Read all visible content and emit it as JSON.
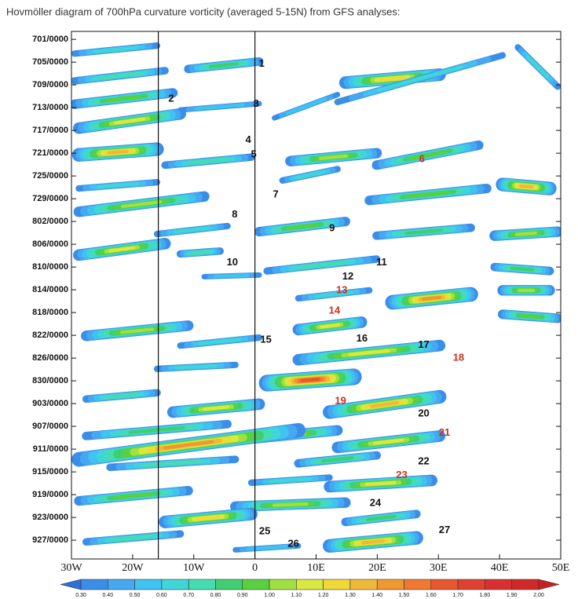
{
  "chart_data": {
    "type": "hovmoller",
    "title": "Hovmöller diagram of 700hPa curvature vorticity (averaged 5-15N) from GFS analyses:",
    "xlim": [
      -30,
      50
    ],
    "xticks": [
      {
        "value": -30,
        "label": "30W"
      },
      {
        "value": -20,
        "label": "20W"
      },
      {
        "value": -10,
        "label": "10W"
      },
      0,
      {
        "value": 10,
        "label": "10E"
      },
      {
        "value": 20,
        "label": "20E"
      },
      {
        "value": 30,
        "label": "30E"
      },
      {
        "value": 40,
        "label": "40E"
      },
      {
        "value": 50,
        "label": "50E"
      }
    ],
    "ylim": [
      -1.4,
      91.3
    ],
    "y_reversed": true,
    "yticks": [
      {
        "value": 0,
        "label": "701/0000"
      },
      {
        "value": 4,
        "label": "705/0000"
      },
      {
        "value": 8,
        "label": "709/0000"
      },
      {
        "value": 12,
        "label": "713/0000"
      },
      {
        "value": 16,
        "label": "717/0000"
      },
      {
        "value": 20,
        "label": "721/0000"
      },
      {
        "value": 24,
        "label": "725/0000"
      },
      {
        "value": 28,
        "label": "729/0000"
      },
      {
        "value": 32,
        "label": "802/0000"
      },
      {
        "value": 36,
        "label": "806/0000"
      },
      {
        "value": 40,
        "label": "810/0000"
      },
      {
        "value": 44,
        "label": "814/0000"
      },
      {
        "value": 48,
        "label": "818/0000"
      },
      {
        "value": 52,
        "label": "822/0000"
      },
      {
        "value": 56,
        "label": "826/0000"
      },
      {
        "value": 60,
        "label": "830/0000"
      },
      {
        "value": 64,
        "label": "903/0000"
      },
      {
        "value": 68,
        "label": "907/0000"
      },
      {
        "value": 72,
        "label": "911/0000"
      },
      {
        "value": 76,
        "label": "915/0000"
      },
      {
        "value": 80,
        "label": "919/0000"
      },
      {
        "value": 84,
        "label": "923/0000"
      },
      {
        "value": 88,
        "label": "927/0000"
      }
    ],
    "reference_lines": [
      -15.8,
      0
    ],
    "features": [
      {
        "lon": [
          -29.5,
          -16.0
        ],
        "day": [
          2.5,
          1.1
        ],
        "level": 0.6
      },
      {
        "lon": [
          -10.9,
          0.7
        ],
        "day": [
          5.2,
          3.9
        ],
        "level": 0.8
      },
      {
        "lon": [
          -29.5,
          -14.7
        ],
        "day": [
          7.3,
          5.5
        ],
        "level": 0.7
      },
      {
        "lon": [
          14.8,
          30.2
        ],
        "day": [
          7.6,
          6.2
        ],
        "level": 1.2
      },
      {
        "lon": [
          -29.5,
          -13.4
        ],
        "day": [
          11.4,
          9.4
        ],
        "level": 0.9
      },
      {
        "lon": [
          -12.2,
          0.7
        ],
        "day": [
          12.4,
          11.3
        ],
        "level": 0.5
      },
      {
        "lon": [
          -28.8,
          -12.2
        ],
        "day": [
          15.6,
          13.1
        ],
        "level": 1.1
      },
      {
        "lon": [
          3.2,
          13.5
        ],
        "day": [
          13.8,
          9.7
        ],
        "level": 0.5
      },
      {
        "lon": [
          13.5,
          40.5
        ],
        "day": [
          11.0,
          2.8
        ],
        "level": 0.6
      },
      {
        "lon": [
          -28.8,
          -16.0
        ],
        "day": [
          20.3,
          19.3
        ],
        "level": 1.3
      },
      {
        "lon": [
          -14.7,
          -0.6
        ],
        "day": [
          22.1,
          20.7
        ],
        "level": 0.7
      },
      {
        "lon": [
          5.8,
          19.9
        ],
        "day": [
          21.4,
          20.0
        ],
        "level": 1.0
      },
      {
        "lon": [
          19.9,
          36.6
        ],
        "day": [
          22.1,
          18.6
        ],
        "level": 0.9
      },
      {
        "lon": [
          -28.8,
          -16.0
        ],
        "day": [
          26.2,
          25.1
        ],
        "level": 0.6
      },
      {
        "lon": [
          -28.8,
          -8.3
        ],
        "day": [
          30.3,
          27.6
        ],
        "level": 1.0
      },
      {
        "lon": [
          4.5,
          13.5
        ],
        "day": [
          24.8,
          22.8
        ],
        "level": 0.6
      },
      {
        "lon": [
          18.7,
          37.9
        ],
        "day": [
          28.3,
          26.2
        ],
        "level": 0.9
      },
      {
        "lon": [
          0.7,
          14.8
        ],
        "day": [
          33.8,
          32.0
        ],
        "level": 0.9
      },
      {
        "lon": [
          -28.8,
          -14.7
        ],
        "day": [
          37.9,
          35.9
        ],
        "level": 1.1
      },
      {
        "lon": [
          -16.0,
          -4.5
        ],
        "day": [
          34.2,
          32.8
        ],
        "level": 0.6
      },
      {
        "lon": [
          19.9,
          35.3
        ],
        "day": [
          34.5,
          33.1
        ],
        "level": 0.8
      },
      {
        "lon": [
          -12.2,
          -5.7
        ],
        "day": [
          37.7,
          37.2
        ],
        "level": 0.7
      },
      {
        "lon": [
          2.0,
          19.9
        ],
        "day": [
          40.7,
          38.6
        ],
        "level": 0.7
      },
      {
        "lon": [
          -8.3,
          0.7
        ],
        "day": [
          41.7,
          41.4
        ],
        "level": 0.5
      },
      {
        "lon": [
          7.1,
          18.7
        ],
        "day": [
          45.5,
          44.1
        ],
        "level": 0.6
      },
      {
        "lon": [
          22.5,
          35.3
        ],
        "day": [
          46.2,
          44.8
        ],
        "level": 1.4
      },
      {
        "lon": [
          -27.6,
          -10.9
        ],
        "day": [
          52.1,
          50.3
        ],
        "level": 1.0
      },
      {
        "lon": [
          7.1,
          17.4
        ],
        "day": [
          51.0,
          49.7
        ],
        "level": 1.1
      },
      {
        "lon": [
          -12.2,
          0.7
        ],
        "day": [
          53.8,
          52.4
        ],
        "level": 0.6
      },
      {
        "lon": [
          7.1,
          30.2
        ],
        "day": [
          56.3,
          53.8
        ],
        "level": 1.1
      },
      {
        "lon": [
          -16.0,
          -3.2
        ],
        "day": [
          57.9,
          57.2
        ],
        "level": 0.6
      },
      {
        "lon": [
          2.0,
          16.1
        ],
        "day": [
          60.4,
          59.3
        ],
        "level": 1.6
      },
      {
        "lon": [
          -27.6,
          -16.0
        ],
        "day": [
          63.2,
          62.1
        ],
        "level": 0.7
      },
      {
        "lon": [
          -13.4,
          0.7
        ],
        "day": [
          65.5,
          64.1
        ],
        "level": 1.1
      },
      {
        "lon": [
          12.2,
          30.2
        ],
        "day": [
          65.5,
          62.8
        ],
        "level": 1.3
      },
      {
        "lon": [
          -27.6,
          -4.5
        ],
        "day": [
          69.7,
          67.6
        ],
        "level": 0.8
      },
      {
        "lon": [
          -1.9,
          13.5
        ],
        "day": [
          70.3,
          68.7
        ],
        "level": 1.0
      },
      {
        "lon": [
          13.5,
          30.2
        ],
        "day": [
          71.7,
          69.7
        ],
        "level": 1.1
      },
      {
        "lon": [
          -28.8,
          7.1
        ],
        "day": [
          73.8,
          68.7
        ],
        "level": 1.4
      },
      {
        "lon": [
          -23.7,
          -3.2
        ],
        "day": [
          75.2,
          73.8
        ],
        "level": 0.7
      },
      {
        "lon": [
          7.1,
          19.9
        ],
        "day": [
          74.5,
          73.1
        ],
        "level": 0.8
      },
      {
        "lon": [
          -0.6,
          12.2
        ],
        "day": [
          77.9,
          77.0
        ],
        "level": 0.6
      },
      {
        "lon": [
          12.2,
          28.9
        ],
        "day": [
          78.6,
          77.5
        ],
        "level": 1.1
      },
      {
        "lon": [
          -28.8,
          -10.9
        ],
        "day": [
          81.1,
          79.3
        ],
        "level": 0.9
      },
      {
        "lon": [
          -3.2,
          14.8
        ],
        "day": [
          82.1,
          81.4
        ],
        "level": 1.0
      },
      {
        "lon": [
          -14.7,
          -0.6
        ],
        "day": [
          84.8,
          83.4
        ],
        "level": 1.2
      },
      {
        "lon": [
          14.8,
          26.4
        ],
        "day": [
          84.8,
          83.4
        ],
        "level": 0.8
      },
      {
        "lon": [
          -27.6,
          -12.2
        ],
        "day": [
          88.3,
          86.9
        ],
        "level": 0.7
      },
      {
        "lon": [
          12.2,
          26.4
        ],
        "day": [
          89.0,
          87.6
        ],
        "level": 1.3
      },
      {
        "lon": [
          -3.2,
          7.1
        ],
        "day": [
          89.7,
          89.0
        ],
        "level": 0.5
      },
      {
        "lon": [
          40.5,
          48.2
        ],
        "day": [
          25.5,
          26.2
        ],
        "level": 1.3
      },
      {
        "lon": [
          39.2,
          49.5
        ],
        "day": [
          34.5,
          33.8
        ],
        "level": 1.0
      },
      {
        "lon": [
          39.2,
          48.2
        ],
        "day": [
          40.0,
          40.7
        ],
        "level": 0.8
      },
      {
        "lon": [
          40.5,
          48.2
        ],
        "day": [
          44.1,
          44.1
        ],
        "level": 1.0
      },
      {
        "lon": [
          40.5,
          49.5
        ],
        "day": [
          48.3,
          49.0
        ],
        "level": 0.9
      },
      {
        "lon": [
          43.0,
          49.5
        ],
        "day": [
          1.4,
          8.3
        ],
        "level": 0.6
      }
    ],
    "annotations": [
      {
        "text": "1",
        "lon": 1.1,
        "day": 4.3,
        "color": "#111111"
      },
      {
        "text": "2",
        "lon": -13.7,
        "day": 10.5,
        "color": "#111111"
      },
      {
        "text": "3",
        "lon": 0.2,
        "day": 11.4,
        "color": "#111111"
      },
      {
        "text": "4",
        "lon": -1.1,
        "day": 17.7,
        "color": "#111111"
      },
      {
        "text": "5",
        "lon": -0.2,
        "day": 20.3,
        "color": "#111111"
      },
      {
        "text": "6",
        "lon": 27.3,
        "day": 21.1,
        "color": "#c8321e"
      },
      {
        "text": "7",
        "lon": 3.4,
        "day": 27.3,
        "color": "#111111"
      },
      {
        "text": "8",
        "lon": -3.3,
        "day": 30.8,
        "color": "#111111"
      },
      {
        "text": "9",
        "lon": 12.6,
        "day": 33.2,
        "color": "#111111"
      },
      {
        "text": "10",
        "lon": -3.7,
        "day": 39.2,
        "color": "#111111"
      },
      {
        "text": "11",
        "lon": 20.7,
        "day": 39.2,
        "color": "#111111"
      },
      {
        "text": "12",
        "lon": 15.2,
        "day": 41.7,
        "color": "#111111"
      },
      {
        "text": "13",
        "lon": 14.2,
        "day": 44.1,
        "color": "#c8321e"
      },
      {
        "text": "14",
        "lon": 13.0,
        "day": 47.7,
        "color": "#c8321e"
      },
      {
        "text": "15",
        "lon": 1.8,
        "day": 52.8,
        "color": "#111111"
      },
      {
        "text": "16",
        "lon": 17.5,
        "day": 52.6,
        "color": "#111111"
      },
      {
        "text": "17",
        "lon": 27.6,
        "day": 53.7,
        "color": "#111111"
      },
      {
        "text": "18",
        "lon": 33.3,
        "day": 56.0,
        "color": "#c8321e"
      },
      {
        "text": "19",
        "lon": 14.0,
        "day": 63.6,
        "color": "#c8321e"
      },
      {
        "text": "20",
        "lon": 27.6,
        "day": 65.8,
        "color": "#111111"
      },
      {
        "text": "21",
        "lon": 31.0,
        "day": 69.2,
        "color": "#c8321e"
      },
      {
        "text": "22",
        "lon": 27.6,
        "day": 74.2,
        "color": "#111111"
      },
      {
        "text": "23",
        "lon": 24.0,
        "day": 76.6,
        "color": "#c8321e"
      },
      {
        "text": "24",
        "lon": 19.7,
        "day": 81.5,
        "color": "#111111"
      },
      {
        "text": "25",
        "lon": 1.6,
        "day": 86.5,
        "color": "#111111"
      },
      {
        "text": "26",
        "lon": 6.3,
        "day": 88.7,
        "color": "#111111"
      },
      {
        "text": "27",
        "lon": 31.0,
        "day": 86.3,
        "color": "#111111"
      }
    ],
    "colorbar": {
      "levels": [
        {
          "value": 0.3,
          "label": "0.30"
        },
        {
          "value": 0.4,
          "label": "0.40"
        },
        {
          "value": 0.5,
          "label": "0.50"
        },
        {
          "value": 0.6,
          "label": "0.60"
        },
        {
          "value": 0.7,
          "label": "0.70"
        },
        {
          "value": 0.8,
          "label": "0.80"
        },
        {
          "value": 0.9,
          "label": "0.90"
        },
        {
          "value": 1,
          "label": "1.00"
        },
        {
          "value": 1.1,
          "label": "1.10"
        },
        {
          "value": 1.2,
          "label": "1.20"
        },
        {
          "value": 1.3,
          "label": "1.30"
        },
        {
          "value": 1.4,
          "label": "1.40"
        },
        {
          "value": 1.5,
          "label": "1.50"
        },
        {
          "value": 1.6,
          "label": "1.60"
        },
        {
          "value": 1.7,
          "label": "1.70"
        },
        {
          "value": 1.8,
          "label": "1.80"
        },
        {
          "value": 1.9,
          "label": "1.90"
        },
        {
          "value": 2,
          "label": "2.00"
        }
      ],
      "colors": [
        "#2e6fd8",
        "#3a8ee8",
        "#45a8f0",
        "#3fc3f0",
        "#40d6d8",
        "#45dcb0",
        "#3fcf70",
        "#58d040",
        "#a0e040",
        "#d8e840",
        "#f0d838",
        "#f0b838",
        "#f09830",
        "#f07830",
        "#e85830",
        "#e04030",
        "#d83030",
        "#d02828",
        "#c82020"
      ]
    }
  }
}
